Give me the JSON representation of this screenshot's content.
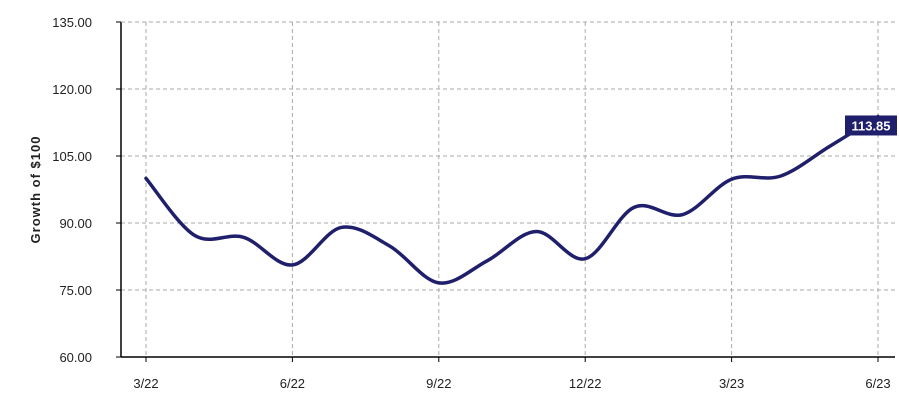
{
  "chart_data": {
    "type": "line",
    "title": "",
    "xlabel": "",
    "ylabel": "Growth of $100",
    "ylim": [
      60,
      135
    ],
    "yticks": [
      "60.00",
      "75.00",
      "90.00",
      "105.00",
      "120.00",
      "135.00"
    ],
    "x_tick_labels": [
      "3/22",
      "6/22",
      "9/22",
      "12/22",
      "3/23",
      "6/23"
    ],
    "grid": true,
    "x": [
      "3/22",
      "4/22",
      "5/22",
      "6/22",
      "7/22",
      "8/22",
      "9/22",
      "10/22",
      "11/22",
      "12/22",
      "1/23",
      "2/23",
      "3/23",
      "4/23",
      "5/23",
      "6/23"
    ],
    "series": [
      {
        "color": "#1f1f6b",
        "values": [
          100.0,
          87.2,
          86.8,
          80.6,
          89.0,
          84.8,
          76.6,
          81.6,
          88.1,
          82.0,
          93.5,
          91.9,
          99.8,
          100.5,
          107.1,
          113.85
        ]
      }
    ],
    "end_label": "113.85",
    "end_label_color": "#1f1f6b",
    "grid_color": "#aaaaaa"
  }
}
